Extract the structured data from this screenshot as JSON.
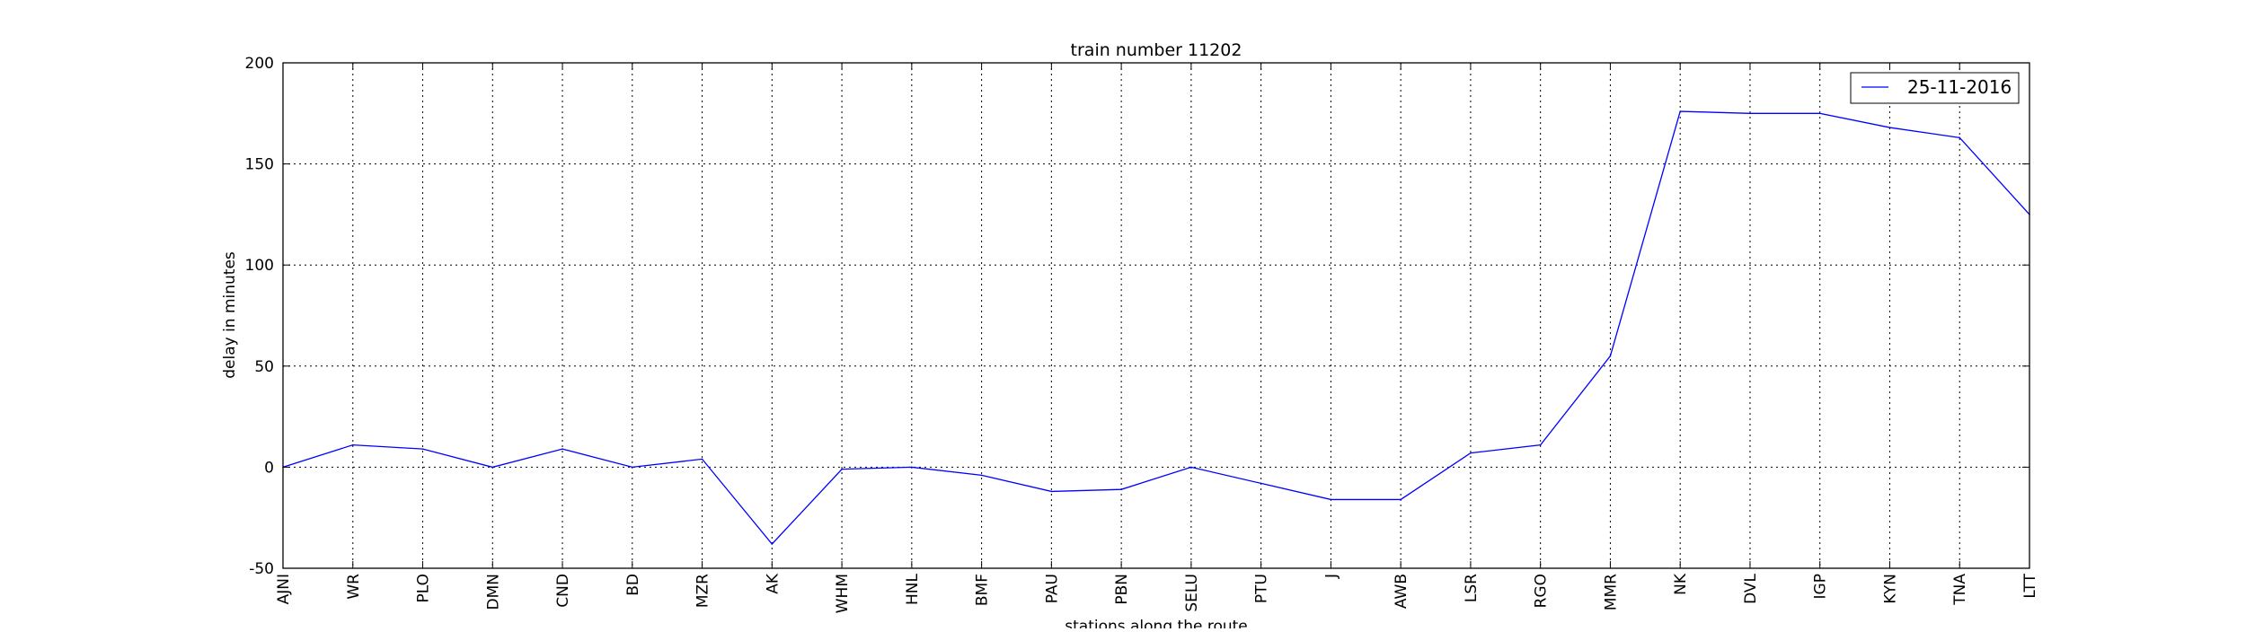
{
  "chart_data": {
    "type": "line",
    "title": "train number 11202",
    "xlabel": "stations along the route",
    "ylabel": "delay in minutes",
    "categories": [
      "AJNI",
      "WR",
      "PLO",
      "DMN",
      "CND",
      "BD",
      "MZR",
      "AK",
      "WHM",
      "HNL",
      "BMF",
      "PAU",
      "PBN",
      "SELU",
      "PTU",
      "J",
      "AWB",
      "LSR",
      "RGO",
      "MMR",
      "NK",
      "DVL",
      "IGP",
      "KYN",
      "TNA",
      "LTT"
    ],
    "series": [
      {
        "name": "25-11-2016",
        "color": "#0000ff",
        "values": [
          0,
          11,
          9,
          0,
          9,
          0,
          4,
          -38,
          -1,
          0,
          -4,
          -12,
          -11,
          0,
          -8,
          -16,
          -16,
          7,
          11,
          55,
          176,
          175,
          175,
          168,
          163,
          125
        ]
      }
    ],
    "ylim": [
      -50,
      200
    ],
    "yticks": [
      -50,
      0,
      50,
      100,
      150,
      200
    ],
    "grid": true,
    "legend_position": "top-right"
  }
}
